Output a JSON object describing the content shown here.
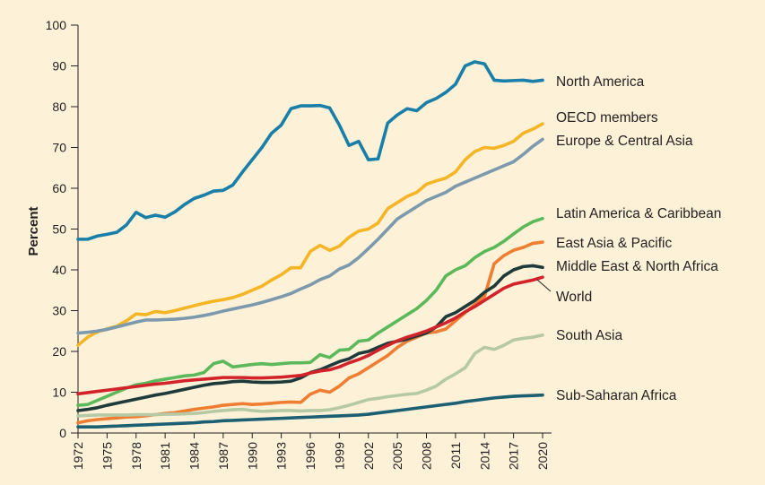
{
  "chart_data": {
    "type": "line",
    "ylabel": "Percent",
    "xlabel": "",
    "title": "",
    "ylim": [
      0,
      100
    ],
    "yticks": [
      0,
      10,
      20,
      30,
      40,
      50,
      60,
      70,
      80,
      90,
      100
    ],
    "xlim": [
      1972,
      2020
    ],
    "xticks": [
      1972,
      1975,
      1978,
      1981,
      1984,
      1987,
      1990,
      1993,
      1996,
      1999,
      2002,
      2005,
      2008,
      2011,
      2014,
      2017,
      2020
    ],
    "grid": false,
    "legend": "direct labels at right end of lines",
    "x": [
      1972,
      1973,
      1974,
      1975,
      1976,
      1977,
      1978,
      1979,
      1980,
      1981,
      1982,
      1983,
      1984,
      1985,
      1986,
      1987,
      1988,
      1989,
      1990,
      1991,
      1992,
      1993,
      1994,
      1995,
      1996,
      1997,
      1998,
      1999,
      2000,
      2001,
      2002,
      2003,
      2004,
      2005,
      2006,
      2007,
      2008,
      2009,
      2010,
      2011,
      2012,
      2013,
      2014,
      2015,
      2016,
      2017,
      2018,
      2019,
      2020
    ],
    "series": [
      {
        "name": "North America",
        "color": "#1a7fa8",
        "values": [
          47.5,
          47.5,
          48.3,
          48.7,
          49.2,
          51.0,
          54.1,
          52.8,
          53.4,
          52.9,
          54.2,
          56.0,
          57.5,
          58.3,
          59.3,
          59.5,
          60.8,
          64.0,
          67.0,
          70.0,
          73.5,
          75.5,
          79.5,
          80.2,
          80.2,
          80.3,
          79.7,
          75.5,
          70.5,
          71.5,
          67.0,
          67.2,
          76.0,
          78.0,
          79.5,
          79.0,
          81.0,
          82.0,
          83.5,
          85.5,
          90.0,
          91.0,
          90.5,
          86.5,
          86.3,
          86.4,
          86.5,
          86.2,
          86.5
        ]
      },
      {
        "name": "OECD members",
        "color": "#f5b525",
        "values": [
          21.5,
          23.5,
          24.8,
          25.5,
          26.2,
          27.5,
          29.2,
          29.0,
          29.8,
          29.5,
          30.0,
          30.6,
          31.2,
          31.8,
          32.3,
          32.7,
          33.2,
          34.0,
          35.0,
          36.0,
          37.5,
          38.8,
          40.5,
          40.5,
          44.5,
          46.0,
          44.8,
          45.8,
          48.0,
          49.5,
          50.0,
          51.5,
          55.0,
          56.5,
          58.0,
          59.0,
          61.0,
          61.8,
          62.5,
          64.0,
          67.0,
          69.0,
          70.0,
          69.8,
          70.5,
          71.5,
          73.5,
          74.5,
          75.8
        ]
      },
      {
        "name": "Europe & Central Asia",
        "color": "#7d99ad",
        "values": [
          24.5,
          24.7,
          25.0,
          25.4,
          26.0,
          26.6,
          27.2,
          27.7,
          27.7,
          27.8,
          27.9,
          28.1,
          28.4,
          28.8,
          29.3,
          29.9,
          30.4,
          30.9,
          31.4,
          32.0,
          32.7,
          33.4,
          34.2,
          35.3,
          36.3,
          37.6,
          38.5,
          40.2,
          41.2,
          43.0,
          45.2,
          47.5,
          50.0,
          52.5,
          54.0,
          55.5,
          57.0,
          58.0,
          59.0,
          60.5,
          61.5,
          62.5,
          63.5,
          64.5,
          65.5,
          66.5,
          68.3,
          70.3,
          72.0
        ]
      },
      {
        "name": "Latin America & Caribbean",
        "color": "#5cb95b",
        "values": [
          6.8,
          7.0,
          8.0,
          9.0,
          10.0,
          11.0,
          11.8,
          12.2,
          12.8,
          13.2,
          13.6,
          14.0,
          14.2,
          14.8,
          17.0,
          17.6,
          16.2,
          16.5,
          16.8,
          17.0,
          16.8,
          17.0,
          17.2,
          17.2,
          17.3,
          19.2,
          18.5,
          20.3,
          20.5,
          22.5,
          22.8,
          24.5,
          26.0,
          27.5,
          29.0,
          30.5,
          32.5,
          35.0,
          38.5,
          40.0,
          41.0,
          43.0,
          44.5,
          45.5,
          47.0,
          48.8,
          50.5,
          51.8,
          52.6
        ]
      },
      {
        "name": "East Asia & Pacific",
        "color": "#f07e32",
        "values": [
          2.5,
          3.0,
          3.3,
          3.5,
          3.7,
          3.9,
          4.0,
          4.2,
          4.5,
          4.8,
          5.0,
          5.4,
          5.8,
          6.1,
          6.4,
          6.8,
          7.0,
          7.2,
          7.0,
          7.1,
          7.3,
          7.5,
          7.6,
          7.5,
          9.5,
          10.5,
          10.0,
          11.5,
          13.5,
          14.5,
          16.0,
          17.5,
          19.0,
          21.0,
          22.5,
          23.5,
          24.5,
          24.8,
          25.5,
          27.5,
          29.5,
          31.5,
          33.5,
          41.5,
          43.5,
          44.8,
          45.5,
          46.5,
          46.8
        ]
      },
      {
        "name": "Middle East & North Africa",
        "color": "#1f3a3a",
        "values": [
          5.5,
          5.8,
          6.2,
          6.8,
          7.3,
          7.8,
          8.3,
          8.8,
          9.3,
          9.7,
          10.2,
          10.7,
          11.2,
          11.7,
          12.1,
          12.3,
          12.6,
          12.7,
          12.5,
          12.4,
          12.4,
          12.5,
          12.7,
          13.5,
          14.8,
          15.5,
          16.5,
          17.5,
          18.2,
          19.5,
          20.0,
          21.0,
          22.0,
          22.5,
          23.0,
          23.8,
          24.5,
          26.0,
          28.5,
          29.5,
          31.0,
          32.5,
          34.5,
          36.0,
          38.5,
          40.0,
          40.8,
          41.0,
          40.6
        ]
      },
      {
        "name": "World",
        "color": "#d2232a",
        "values": [
          9.6,
          9.9,
          10.2,
          10.5,
          10.8,
          11.1,
          11.4,
          11.7,
          12.0,
          12.2,
          12.5,
          12.8,
          13.0,
          13.2,
          13.4,
          13.6,
          13.6,
          13.6,
          13.5,
          13.5,
          13.6,
          13.7,
          13.9,
          14.1,
          14.7,
          15.2,
          15.5,
          16.2,
          17.2,
          18.0,
          19.0,
          20.3,
          21.5,
          22.6,
          23.5,
          24.2,
          25.0,
          26.0,
          27.0,
          28.2,
          29.7,
          31.0,
          32.5,
          34.0,
          35.5,
          36.5,
          37.0,
          37.5,
          38.2
        ]
      },
      {
        "name": "South Asia",
        "color": "#b5c9a5",
        "values": [
          4.2,
          4.3,
          4.4,
          4.4,
          4.4,
          4.4,
          4.5,
          4.5,
          4.5,
          4.6,
          4.6,
          4.7,
          4.8,
          5.0,
          5.3,
          5.5,
          5.7,
          5.8,
          5.5,
          5.3,
          5.4,
          5.5,
          5.5,
          5.4,
          5.5,
          5.5,
          5.7,
          6.2,
          6.8,
          7.5,
          8.2,
          8.5,
          8.9,
          9.2,
          9.5,
          9.7,
          10.5,
          11.5,
          13.2,
          14.5,
          16.0,
          19.5,
          21.0,
          20.5,
          21.5,
          22.8,
          23.2,
          23.5,
          24.0
        ]
      },
      {
        "name": "Sub-Saharan Africa",
        "color": "#1c5f73",
        "values": [
          1.5,
          1.5,
          1.5,
          1.6,
          1.7,
          1.8,
          1.9,
          2.0,
          2.1,
          2.2,
          2.3,
          2.4,
          2.5,
          2.7,
          2.8,
          3.0,
          3.1,
          3.2,
          3.3,
          3.4,
          3.5,
          3.6,
          3.7,
          3.8,
          3.9,
          4.0,
          4.1,
          4.2,
          4.3,
          4.4,
          4.6,
          4.9,
          5.2,
          5.5,
          5.8,
          6.1,
          6.4,
          6.7,
          7.0,
          7.3,
          7.7,
          8.0,
          8.3,
          8.6,
          8.8,
          9.0,
          9.1,
          9.2,
          9.3
        ]
      }
    ]
  }
}
